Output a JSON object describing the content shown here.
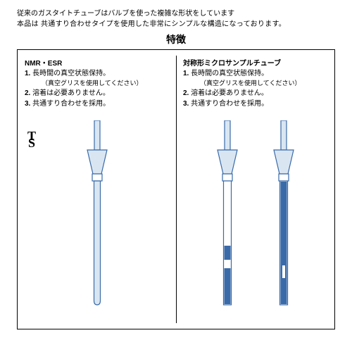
{
  "intro": {
    "line1": "従来のガスタイトチューブはバルブを使った複雑な形状をしています",
    "line2": "本品は 共通すり合わせタイプを使用した非常にシンプルな構造になっております。"
  },
  "heading": "特徴",
  "panels": {
    "left": {
      "title": "NMR・ESR",
      "items": [
        {
          "num": "1.",
          "text": "長時間の真空状態保持。",
          "sub": "（真空グリスを使用してください）"
        },
        {
          "num": "2.",
          "text": "溶着は必要ありません。"
        },
        {
          "num": "3.",
          "text": "共通すり合わせを採用。"
        }
      ]
    },
    "right": {
      "title": "対称形ミクロサンプルチューブ",
      "items": [
        {
          "num": "1.",
          "text": "長時間の真空状態保持。",
          "sub": "（真空グリスを使用してください）"
        },
        {
          "num": "2.",
          "text": "溶着は必要ありません。"
        },
        {
          "num": "3.",
          "text": "共通すり合わせを採用。"
        }
      ]
    }
  },
  "monogram": {
    "top": "T",
    "bottom": "S"
  },
  "style": {
    "stroke": "#3a6aa8",
    "fill_light": "#d9e6f2",
    "fill_solid": "#3a6aa8",
    "stroke_width": 1.2
  }
}
